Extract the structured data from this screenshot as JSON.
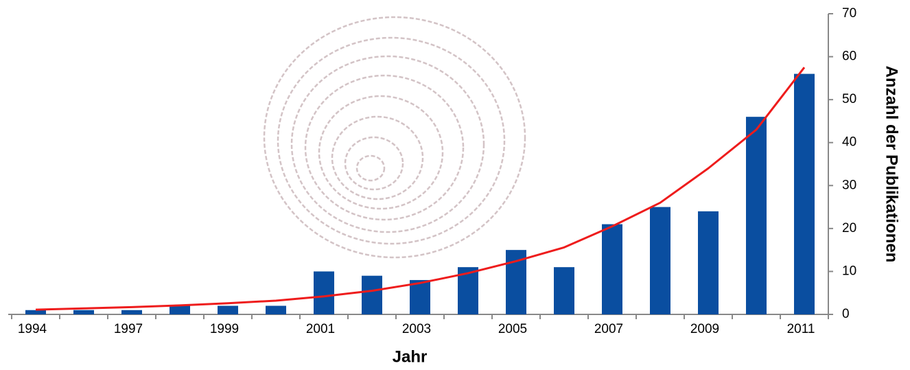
{
  "chart_data": {
    "type": "bar",
    "x_label": "Jahr",
    "y_label": "Anzahl der Publikationen",
    "categories": [
      "1994",
      null,
      "1997",
      null,
      "1999",
      null,
      "2001",
      null,
      "2003",
      null,
      "2005",
      null,
      "2007",
      null,
      "2009",
      null,
      "2011"
    ],
    "values": [
      1,
      1,
      1,
      2,
      2,
      2,
      10,
      9,
      8,
      11,
      15,
      11,
      21,
      25,
      24,
      46,
      56
    ],
    "color": "#0a4ea0",
    "trend": {
      "color": "#ee1c1c",
      "values": [
        1.1,
        1.4,
        1.7,
        2.1,
        2.6,
        3.2,
        4.2,
        5.5,
        7.3,
        9.6,
        12.4,
        15.6,
        20.5,
        26,
        34,
        43,
        57.5
      ]
    },
    "ylim": [
      0,
      70
    ],
    "yticks": [
      0,
      10,
      20,
      30,
      40,
      50,
      60,
      70
    ],
    "y_axis_side": "right"
  }
}
